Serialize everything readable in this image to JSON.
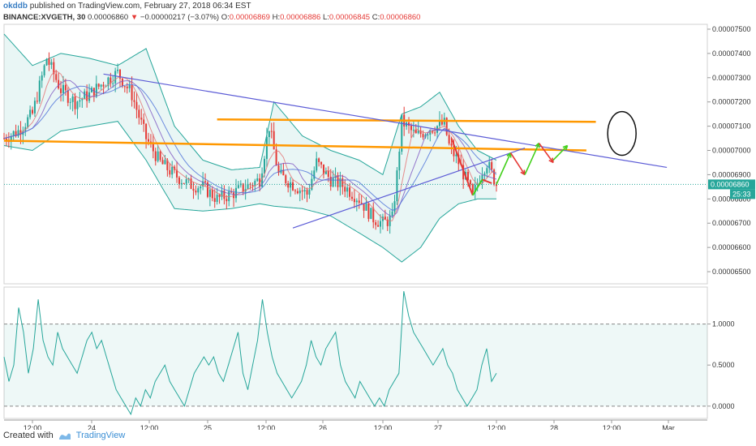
{
  "header": {
    "user": "okddb",
    "published_text": "published on TradingView.com, February 27, 2018 06:34 EST",
    "symbol": "BINANCE:XVGETH, 30",
    "last": "0.00006860",
    "change_arrow": "▼",
    "change": "−0.00000217 (−3.07%)",
    "o_label": "O:",
    "o_value": "0.00006869",
    "h_label": "H:",
    "h_value": "0.00006886",
    "l_label": "L:",
    "l_value": "0.00006845",
    "c_label": "C:",
    "c_value": "0.00006860"
  },
  "footer": {
    "created_with": "Created with",
    "brand": "TradingView"
  },
  "colors": {
    "up": "#26a69a",
    "down": "#e53935",
    "band": "#26a69a",
    "trend_blue": "#5b5bd6",
    "orange": "#ff9800",
    "arrow_red": "#e53935",
    "arrow_green": "#43d01c",
    "price_tag": "#26a69a"
  },
  "chart_data": [
    {
      "type": "candlestick",
      "title": "",
      "ylim": [
        6.45e-05,
        7.52e-05
      ],
      "price_ticks": [
        "0.00006500",
        "0.00006600",
        "0.00006700",
        "0.00006800",
        "0.00006900",
        "0.00007000",
        "0.00007100",
        "0.00007200",
        "0.00007300",
        "0.00007400",
        "0.00007500"
      ],
      "current_price_tag": "0.00006860",
      "countdown_tag": "25:33",
      "x_ticks": [
        "12:00",
        "24",
        "12:00",
        "25",
        "12:00",
        "26",
        "12:00",
        "27",
        "12:00",
        "28",
        "12:00",
        "Mar"
      ],
      "price_path": [
        [
          0,
          7.05e-05
        ],
        [
          3,
          7.08e-05
        ],
        [
          6,
          7.15e-05
        ],
        [
          9,
          7.38e-05
        ],
        [
          12,
          7.25e-05
        ],
        [
          15,
          7.2e-05
        ],
        [
          18,
          7.23e-05
        ],
        [
          21,
          7.28e-05
        ],
        [
          24,
          7.32e-05
        ],
        [
          27,
          7.23e-05
        ],
        [
          30,
          7.05e-05
        ],
        [
          33,
          6.95e-05
        ],
        [
          36,
          6.9e-05
        ],
        [
          39,
          6.86e-05
        ],
        [
          42,
          6.85e-05
        ],
        [
          45,
          6.8e-05
        ],
        [
          48,
          6.82e-05
        ],
        [
          51,
          6.85e-05
        ],
        [
          54,
          6.88e-05
        ],
        [
          56,
          7.1e-05
        ],
        [
          58,
          6.9e-05
        ],
        [
          61,
          6.86e-05
        ],
        [
          64,
          6.82e-05
        ],
        [
          66,
          6.95e-05
        ],
        [
          69,
          6.88e-05
        ],
        [
          72,
          6.85e-05
        ],
        [
          75,
          6.8e-05
        ],
        [
          78,
          6.72e-05
        ],
        [
          80,
          6.7e-05
        ],
        [
          82,
          6.72e-05
        ],
        [
          83,
          6.9e-05
        ],
        [
          84,
          7.12e-05
        ],
        [
          87,
          7.06e-05
        ],
        [
          90,
          7.09e-05
        ],
        [
          93,
          7.11e-05
        ],
        [
          94,
          7.02e-05
        ],
        [
          96,
          6.95e-05
        ],
        [
          98,
          6.86e-05
        ],
        [
          99,
          6.81e-05
        ],
        [
          101,
          6.92e-05
        ],
        [
          102,
          6.95e-05
        ],
        [
          104,
          6.86e-05
        ]
      ],
      "bollinger_upper": [
        [
          0,
          7.48e-05
        ],
        [
          6,
          7.35e-05
        ],
        [
          12,
          7.4e-05
        ],
        [
          18,
          7.38e-05
        ],
        [
          24,
          7.35e-05
        ],
        [
          30,
          7.42e-05
        ],
        [
          36,
          7.1e-05
        ],
        [
          42,
          6.96e-05
        ],
        [
          48,
          6.92e-05
        ],
        [
          54,
          6.93e-05
        ],
        [
          57,
          7.2e-05
        ],
        [
          63,
          7.06e-05
        ],
        [
          69,
          7e-05
        ],
        [
          75,
          6.96e-05
        ],
        [
          80,
          6.9e-05
        ],
        [
          84,
          7.15e-05
        ],
        [
          88,
          7.18e-05
        ],
        [
          92,
          7.24e-05
        ],
        [
          96,
          7.1e-05
        ],
        [
          100,
          7e-05
        ],
        [
          104,
          6.96e-05
        ]
      ],
      "bollinger_lower": [
        [
          0,
          7.02e-05
        ],
        [
          6,
          7e-05
        ],
        [
          12,
          7.08e-05
        ],
        [
          18,
          7.1e-05
        ],
        [
          24,
          7.12e-05
        ],
        [
          30,
          6.96e-05
        ],
        [
          36,
          6.76e-05
        ],
        [
          42,
          6.75e-05
        ],
        [
          48,
          6.76e-05
        ],
        [
          54,
          6.78e-05
        ],
        [
          57,
          6.77e-05
        ],
        [
          63,
          6.76e-05
        ],
        [
          69,
          6.73e-05
        ],
        [
          75,
          6.66e-05
        ],
        [
          80,
          6.6e-05
        ],
        [
          84,
          6.54e-05
        ],
        [
          88,
          6.6e-05
        ],
        [
          92,
          6.72e-05
        ],
        [
          96,
          6.78e-05
        ],
        [
          100,
          6.8e-05
        ],
        [
          104,
          6.8e-05
        ]
      ],
      "annotations": {
        "orange_lines": [
          {
            "x": [
              0,
              123
            ],
            "y": [
              7.04e-05,
              7e-05
            ]
          },
          {
            "x": [
              45,
              125
            ],
            "y": [
              7.128e-05,
              7.118e-05
            ]
          }
        ],
        "blue_trendlines": [
          {
            "x": [
              21,
              140
            ],
            "y": [
              7.315e-05,
              6.93e-05
            ]
          },
          {
            "x": [
              61,
              110
            ],
            "y": [
              6.68e-05,
              7.01e-05
            ]
          }
        ],
        "red_segments": [
          [
            [
              94.5,
              7.05e-05
            ],
            [
              99,
              6.815e-05
            ]
          ],
          [
            [
              101,
              6.88e-05
            ],
            [
              103,
              6.865e-05
            ]
          ]
        ],
        "green_segments": [
          [
            [
              99,
              6.815e-05
            ],
            [
              101,
              6.88e-05
            ]
          ]
        ],
        "projection_arrows": [
          {
            "color": "green",
            "from": [
              104,
              6.86e-05
            ],
            "to": [
              107,
              6.99e-05
            ]
          },
          {
            "color": "red",
            "from": [
              107,
              6.99e-05
            ],
            "to": [
              110,
              6.9e-05
            ]
          },
          {
            "color": "green",
            "from": [
              110,
              6.9e-05
            ],
            "to": [
              113,
              7.03e-05
            ]
          },
          {
            "color": "red",
            "from": [
              113,
              7.03e-05
            ],
            "to": [
              116,
              6.95e-05
            ]
          },
          {
            "color": "green",
            "from": [
              116,
              6.96e-05
            ],
            "to": [
              119,
              7.02e-05
            ]
          }
        ],
        "target_ellipse": {
          "x": [
            127.5,
            133.5
          ],
          "y": [
            7.16e-05,
            6.98e-05
          ]
        }
      }
    },
    {
      "type": "line",
      "title": "",
      "ylim": [
        -0.15,
        1.45
      ],
      "y_ticks": [
        "0.0000",
        "0.5000",
        "1.0000"
      ],
      "band": [
        0,
        1
      ],
      "values": [
        0.6,
        0.3,
        0.5,
        1.2,
        0.9,
        0.4,
        0.7,
        1.3,
        0.8,
        0.6,
        0.5,
        0.9,
        0.7,
        0.6,
        0.5,
        0.4,
        0.6,
        0.8,
        0.9,
        0.7,
        0.8,
        0.6,
        0.4,
        0.2,
        0.1,
        0.0,
        -0.1,
        0.1,
        0.0,
        0.2,
        0.1,
        0.3,
        0.4,
        0.5,
        0.3,
        0.2,
        0.1,
        0.0,
        0.2,
        0.4,
        0.5,
        0.6,
        0.5,
        0.6,
        0.4,
        0.3,
        0.5,
        0.7,
        0.9,
        0.4,
        0.2,
        0.5,
        0.8,
        1.3,
        0.9,
        0.6,
        0.4,
        0.3,
        0.2,
        0.1,
        0.2,
        0.3,
        0.5,
        0.8,
        0.6,
        0.5,
        0.7,
        0.8,
        0.9,
        0.5,
        0.3,
        0.2,
        0.1,
        0.3,
        0.2,
        0.1,
        0.0,
        0.1,
        0.0,
        0.2,
        0.3,
        0.4,
        1.4,
        1.1,
        0.9,
        0.8,
        0.7,
        0.6,
        0.5,
        0.6,
        0.7,
        0.5,
        0.4,
        0.2,
        0.1,
        0.0,
        0.1,
        0.2,
        0.5,
        0.7,
        0.3,
        0.4
      ]
    }
  ]
}
